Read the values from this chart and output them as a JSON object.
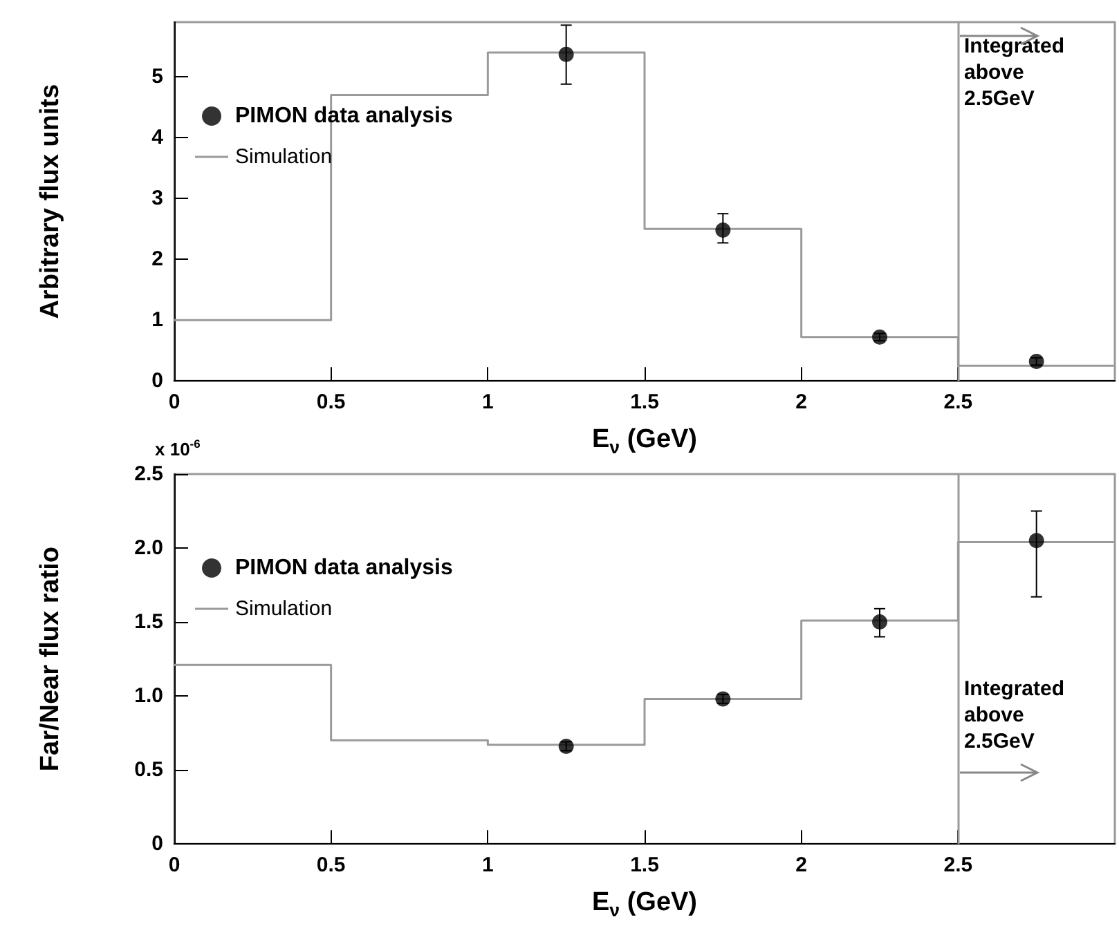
{
  "chart_data": [
    {
      "type": "step",
      "xlabel": "E$_{ν}$ (GeV)",
      "ylabel": "Arbitrary flux units",
      "xlim": [
        0,
        3
      ],
      "xticks": [
        0,
        0.5,
        1,
        1.5,
        2,
        2.5
      ],
      "ylim": [
        0,
        5.9
      ],
      "yticks": [
        0,
        1,
        2,
        3,
        4,
        5
      ],
      "grid": false,
      "legend": "top left",
      "series": [
        {
          "name": "PIMON data analysis",
          "type": "scatter",
          "color": "#000000",
          "marker": "circle",
          "x": [
            1.25,
            1.75,
            2.25,
            2.75
          ],
          "values": [
            5.37,
            2.48,
            0.72,
            0.32
          ],
          "errors": [
            [
              4.88,
              5.85
            ],
            [
              2.27,
              2.75
            ],
            [
              0.66,
              0.78
            ],
            [
              0.26,
              0.38
            ]
          ]
        },
        {
          "name": "Simulation",
          "color": "#9a9a9a",
          "line_style": "solid",
          "x": [
            0,
            0.5,
            1,
            1.5,
            2,
            2.5,
            3
          ],
          "values": [
            1.0,
            4.7,
            5.4,
            2.5,
            0.72,
            0.25,
            0.25
          ]
        }
      ],
      "ref_lines": [
        {
          "axis": "x",
          "value": 2.5,
          "color": "#9a9a9a"
        }
      ],
      "annotations": [
        "Integrated above 2.5GeV"
      ]
    },
    {
      "type": "step",
      "xlabel": "E$_{ν}$ (GeV)",
      "ylabel": "Far/Near flux ratio",
      "xlim": [
        0,
        3
      ],
      "xticks": [
        0,
        0.5,
        1,
        1.5,
        2,
        2.5
      ],
      "ylim": [
        0,
        2.5
      ],
      "yticks": [
        0,
        {
          "value": 0.5,
          "label": "0.5"
        },
        {
          "value": 1,
          "label": "1.0"
        },
        {
          "value": 1.5,
          "label": "1.5"
        },
        {
          "value": 2,
          "label": "2.0"
        },
        {
          "value": 2.5,
          "label": "2.5"
        }
      ],
      "grid": false,
      "legend": "top left",
      "series": [
        {
          "name": "PIMON data analysis",
          "type": "scatter",
          "color": "#000000",
          "marker": "circle",
          "x": [
            1.25,
            1.75,
            2.25,
            2.75
          ],
          "values": [
            0.66,
            0.98,
            1.5,
            2.05
          ],
          "errors": [
            [
              0.63,
              0.69
            ],
            [
              0.95,
              1.01
            ],
            [
              1.4,
              1.59
            ],
            [
              1.67,
              2.25
            ]
          ]
        },
        {
          "name": "Simulation",
          "color": "#9a9a9a",
          "line_style": "solid",
          "x": [
            0,
            0.5,
            1,
            1.5,
            2,
            2.5,
            3
          ],
          "values": [
            1.21,
            0.7,
            0.67,
            0.98,
            1.51,
            2.04,
            2.04
          ]
        }
      ],
      "ref_lines": [
        {
          "axis": "x",
          "value": 2.5,
          "color": "#9a9a9a"
        }
      ],
      "annotations": [
        "x 10$^{-6}$",
        "Integrated above 2.5GeV"
      ]
    }
  ]
}
